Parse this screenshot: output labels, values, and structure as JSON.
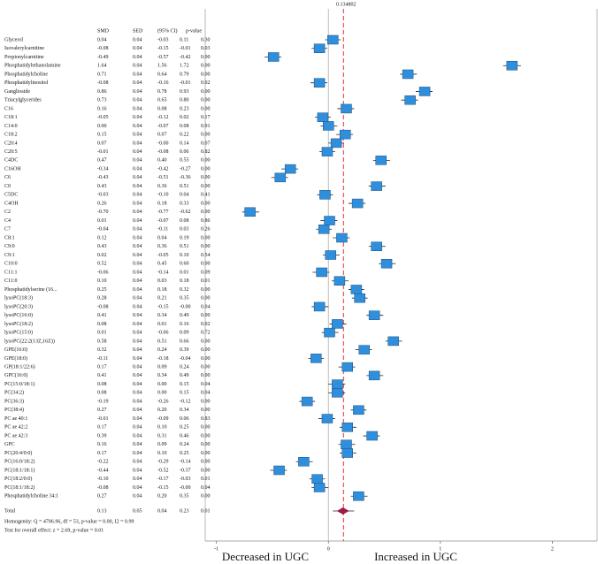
{
  "chart_data": {
    "type": "forest",
    "columns": [
      "SMD",
      "SED",
      "(95% CI)",
      "p-value"
    ],
    "categories": [
      "Glycerol",
      "Isovalerylcarnitine",
      "Propionylcarnitine",
      "Phosphatidylethanolamine",
      "Phosphatidylcholine",
      "Phosphatidylinositol",
      "Ganglioside",
      "Triacylglycerides",
      "C16",
      "C18:1",
      "C14:0",
      "C18:2",
      "C20:4",
      "C20:5",
      "C4DC",
      "C16OH",
      "C6",
      "C0",
      "C5DC",
      "C4OH",
      "C2",
      "C4",
      "C7",
      "C8:1",
      "C9:0",
      "C9:1",
      "C10:0",
      "C11:1",
      "C11:0",
      "Phosphatidylserine (16...",
      "lysoPC(18:3)",
      "lysoPC(20:3)",
      "lysoPC(16:0)",
      "lysoPC(18:2)",
      "lysoPC(15:0)",
      "lysoPC(22:2(13Z,16Z))",
      "GPE(16:0)",
      "GPE(18:0)",
      "GP(18:1/22:6)",
      "GPC(16:0)",
      "PC(15:0/18:1)",
      "PC(34:2)",
      "PC(36:3)",
      "PC(38:4)",
      "PC ae 40:1",
      "PC ae 42:2",
      "PC ae 42:3",
      "GPC",
      "PC(20:4/0:0)",
      "PC(16:0/18:2)",
      "PC(18:1/18:1)",
      "PC(18:2/0:0)",
      "PC(18:1/18:2)",
      "Phosphatidylcholine 34:1"
    ],
    "values": [
      0.04,
      -0.08,
      -0.49,
      1.64,
      0.71,
      -0.08,
      0.86,
      0.73,
      0.16,
      -0.05,
      0,
      0.15,
      0.07,
      -0.01,
      0.47,
      -0.34,
      -0.43,
      0.43,
      -0.03,
      0.26,
      -0.7,
      0.01,
      -0.04,
      0.12,
      0.43,
      0.02,
      0.52,
      -0.06,
      0.1,
      0.25,
      0.28,
      -0.08,
      0.41,
      0.08,
      0.01,
      0.58,
      0.32,
      -0.11,
      0.17,
      0.41,
      0.08,
      0.08,
      -0.19,
      0.27,
      -0.01,
      0.17,
      0.39,
      0.16,
      0.17,
      -0.22,
      -0.44,
      -0.1,
      -0.08,
      0.27
    ],
    "value_labels": [
      "0.04",
      "-0.08",
      "-0.49",
      "1.64",
      "0.71",
      "-0.08",
      "0.86",
      "0.73",
      "0.16",
      "-0.05",
      "0.00",
      "0.15",
      "0.07",
      "-0.01",
      "0.47",
      "-0.34",
      "-0.43",
      "0.43",
      "-0.03",
      "0.26",
      "-0.70",
      "0.01",
      "-0.04",
      "0.12",
      "0.43",
      "0.02",
      "0.52",
      "-0.06",
      "0.10",
      "0.25",
      "0.28",
      "-0.08",
      "0.41",
      "0.08",
      "0.01",
      "0.58",
      "0.32",
      "-0.11",
      "0.17",
      "0.41",
      "0.08",
      "0.08",
      "-0.19",
      "0.27",
      "-0.01",
      "0.17",
      "0.39",
      "0.16",
      "0.17",
      "-0.22",
      "-0.44",
      "-0.10",
      "-0.08",
      "0.27"
    ],
    "sed": [
      "0.04",
      "0.04",
      "0.04",
      "0.04",
      "0.04",
      "0.04",
      "0.04",
      "0.04",
      "0.04",
      "0.04",
      "0.04",
      "0.04",
      "0.04",
      "0.04",
      "0.04",
      "0.04",
      "0.04",
      "0.04",
      "0.04",
      "0.04",
      "0.04",
      "0.04",
      "0.04",
      "0.04",
      "0.04",
      "0.04",
      "0.04",
      "0.04",
      "0.04",
      "0.04",
      "0.04",
      "0.04",
      "0.04",
      "0.04",
      "0.04",
      "0.04",
      "0.04",
      "0.04",
      "0.04",
      "0.04",
      "0.04",
      "0.04",
      "0.04",
      "0.04",
      "0.04",
      "0.04",
      "0.04",
      "0.04",
      "0.04",
      "0.04",
      "0.04",
      "0.04",
      "0.04",
      "0.04"
    ],
    "lower": [
      -0.03,
      -0.15,
      -0.57,
      1.56,
      0.64,
      -0.16,
      0.78,
      0.65,
      0.08,
      -0.12,
      -0.07,
      0.07,
      0,
      -0.08,
      0.4,
      -0.42,
      -0.51,
      0.36,
      -0.1,
      0.18,
      -0.77,
      -0.07,
      -0.11,
      0.04,
      0.36,
      -0.05,
      0.45,
      -0.14,
      0.03,
      0.18,
      0.21,
      -0.15,
      0.34,
      0.01,
      -0.06,
      0.51,
      0.24,
      -0.18,
      0.09,
      0.34,
      0,
      0,
      -0.26,
      0.2,
      -0.09,
      0.1,
      0.31,
      0.09,
      0.1,
      -0.29,
      -0.52,
      -0.17,
      -0.15,
      0.2
    ],
    "lower_labels": [
      "-0.03",
      "-0.15",
      "-0.57",
      "1.56",
      "0.64",
      "-0.16",
      "0.78",
      "0.65",
      "0.08",
      "-0.12",
      "-0.07",
      "0.07",
      "-0.00",
      "-0.08",
      "0.40",
      "-0.42",
      "-0.51",
      "0.36",
      "-0.10",
      "0.18",
      "-0.77",
      "-0.07",
      "-0.11",
      "0.04",
      "0.36",
      "-0.05",
      "0.45",
      "-0.14",
      "0.03",
      "0.18",
      "0.21",
      "-0.15",
      "0.34",
      "0.01",
      "-0.06",
      "0.51",
      "0.24",
      "-0.18",
      "0.09",
      "0.34",
      "0.00",
      "0.00",
      "-0.26",
      "0.20",
      "-0.09",
      "0.10",
      "0.31",
      "0.09",
      "0.10",
      "-0.29",
      "-0.52",
      "-0.17",
      "-0.15",
      "0.20"
    ],
    "upper": [
      0.11,
      -0.01,
      -0.42,
      1.72,
      0.79,
      -0.01,
      0.93,
      0.8,
      0.23,
      0.02,
      0.08,
      0.22,
      0.14,
      0.06,
      0.55,
      -0.27,
      -0.36,
      0.51,
      0.04,
      0.33,
      -0.62,
      0.08,
      0.03,
      0.19,
      0.51,
      0.1,
      0.6,
      0.01,
      0.18,
      0.32,
      0.35,
      0,
      0.49,
      0.16,
      0.09,
      0.66,
      0.39,
      -0.04,
      0.24,
      0.49,
      0.15,
      0.15,
      -0.12,
      0.34,
      0.06,
      0.25,
      0.46,
      0.24,
      0.25,
      -0.14,
      -0.37,
      -0.03,
      0,
      0.35
    ],
    "upper_labels": [
      "0.11",
      "-0.01",
      "-0.42",
      "1.72",
      "0.79",
      "-0.01",
      "0.93",
      "0.80",
      "0.23",
      "0.02",
      "0.08",
      "0.22",
      "0.14",
      "0.06",
      "0.55",
      "-0.27",
      "-0.36",
      "0.51",
      "0.04",
      "0.33",
      "-0.62",
      "0.08",
      "0.03",
      "0.19",
      "0.51",
      "0.10",
      "0.60",
      "0.01",
      "0.18",
      "0.32",
      "0.35",
      "-0.00",
      "0.49",
      "0.16",
      "0.09",
      "0.66",
      "0.39",
      "-0.04",
      "0.24",
      "0.49",
      "0.15",
      "0.15",
      "-0.12",
      "0.34",
      "0.06",
      "0.25",
      "0.46",
      "0.24",
      "0.25",
      "-0.14",
      "-0.37",
      "-0.03",
      "-0.00",
      "0.35"
    ],
    "p_values": [
      "0.30",
      "0.03",
      "0.00",
      "0.00",
      "0.00",
      "0.02",
      "0.00",
      "0.00",
      "0.00",
      "0.17",
      "0.91",
      "0.00",
      "0.07",
      "0.82",
      "0.00",
      "0.00",
      "0.00",
      "0.00",
      "0.41",
      "0.00",
      "0.00",
      "0.86",
      "0.26",
      "0.00",
      "0.00",
      "0.54",
      "0.00",
      "0.09",
      "0.01",
      "0.00",
      "0.00",
      "0.04",
      "0.00",
      "0.02",
      "0.72",
      "0.00",
      "0.00",
      "0.00",
      "0.00",
      "0.00",
      "0.04",
      "0.04",
      "0.00",
      "0.00",
      "0.83",
      "0.00",
      "0.00",
      "0.00",
      "0.00",
      "0.00",
      "0.00",
      "0.01",
      "0.04",
      "0.00"
    ],
    "total": {
      "label": "Total",
      "value": 0.13,
      "value_label": "0.13",
      "sed": "0.05",
      "lower": 0.04,
      "lower_label": "0.04",
      "upper": 0.23,
      "upper_label": "0.23",
      "p_value": "0.01"
    },
    "homogeneity": "Homogenity: Q = 4706.96, df = 53, p-value = 0.00, I2 = 0.99",
    "overall_test": "Test for overall effect: z = 2.69, p-value = 0.01",
    "ref_line": 0.134802,
    "xlim": [
      -1.1,
      2.4
    ],
    "xticks": [
      -1,
      0,
      1,
      2
    ],
    "x_label_left": "Decreased in UGC",
    "x_label_right": "Increased in UGC",
    "box_color": "#2f8fdc",
    "diamond_color": "#9b1c4a",
    "ref_color": "#e0312f"
  }
}
